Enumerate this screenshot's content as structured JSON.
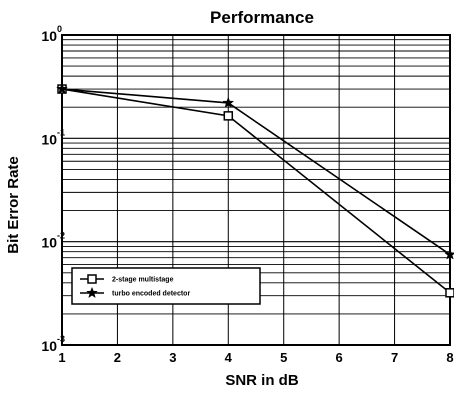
{
  "chart_data": {
    "type": "line",
    "title": "Performance",
    "xlabel": "SNR in dB",
    "ylabel": "Bit Error Rate",
    "x_ticks": [
      "1",
      "2",
      "3",
      "4",
      "5",
      "6",
      "7",
      "8"
    ],
    "y_ticks": [
      {
        "base": "10",
        "exp": "0",
        "value": 1
      },
      {
        "base": "10",
        "exp": "-1",
        "value": 0.1
      },
      {
        "base": "10",
        "exp": "-2",
        "value": 0.01
      },
      {
        "base": "10",
        "exp": "-3",
        "value": 0.001
      }
    ],
    "xlim": [
      1,
      8
    ],
    "ylim": [
      0.001,
      1
    ],
    "yscale": "log",
    "grid": true,
    "legend_position": "lower-left",
    "series": [
      {
        "name": "2-stage multistage",
        "marker": "square",
        "color": "#000000",
        "x": [
          1,
          4,
          8
        ],
        "y": [
          0.3,
          0.165,
          0.0032
        ]
      },
      {
        "name": "turbo encoded detector",
        "marker": "star",
        "color": "#000000",
        "x": [
          1,
          4,
          8
        ],
        "y": [
          0.3,
          0.22,
          0.0075
        ]
      }
    ]
  }
}
